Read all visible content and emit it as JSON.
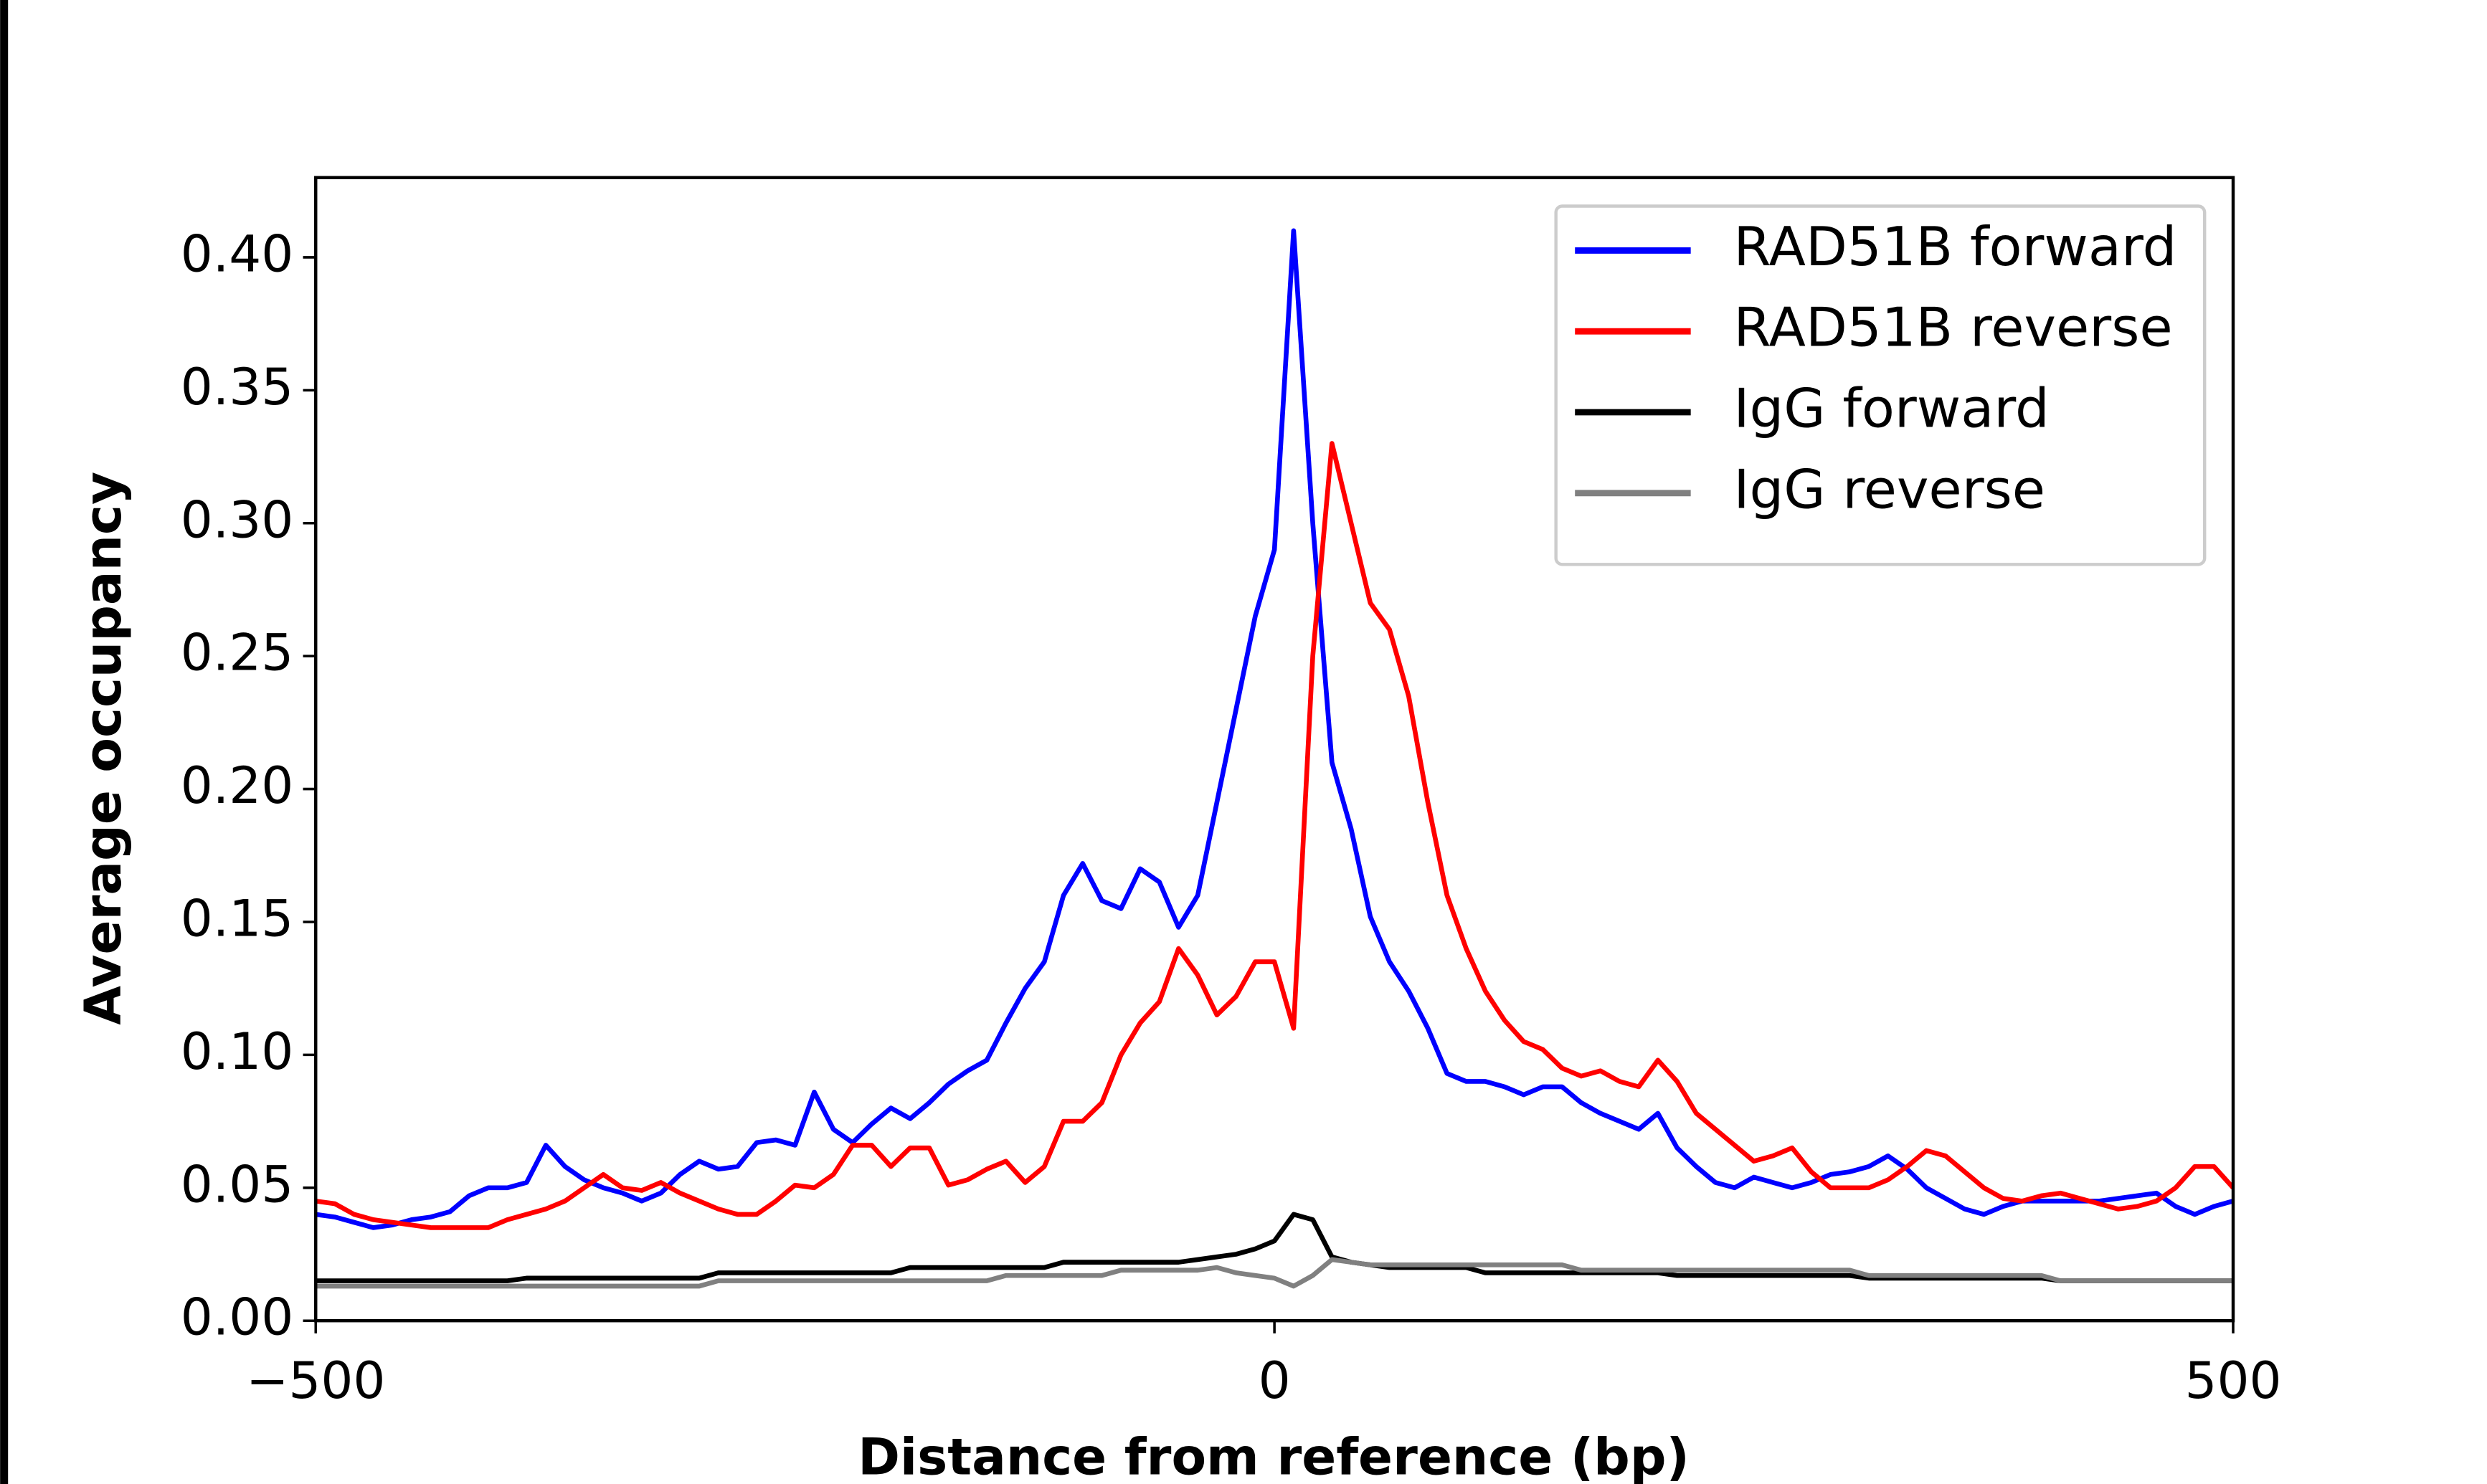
{
  "chart_data": {
    "type": "line",
    "xlabel": "Distance from reference (bp)",
    "ylabel": "Average occupancy",
    "x": [
      -500,
      -490,
      -480,
      -470,
      -460,
      -450,
      -440,
      -430,
      -420,
      -410,
      -400,
      -390,
      -380,
      -370,
      -360,
      -350,
      -340,
      -330,
      -320,
      -310,
      -300,
      -290,
      -280,
      -270,
      -260,
      -250,
      -240,
      -230,
      -220,
      -210,
      -200,
      -190,
      -180,
      -170,
      -160,
      -150,
      -140,
      -130,
      -120,
      -110,
      -100,
      -90,
      -80,
      -70,
      -60,
      -50,
      -40,
      -30,
      -20,
      -10,
      0,
      10,
      20,
      30,
      40,
      50,
      60,
      70,
      80,
      90,
      100,
      110,
      120,
      130,
      140,
      150,
      160,
      170,
      180,
      190,
      200,
      210,
      220,
      230,
      240,
      250,
      260,
      270,
      280,
      290,
      300,
      310,
      320,
      330,
      340,
      350,
      360,
      370,
      380,
      390,
      400,
      410,
      420,
      430,
      440,
      450,
      460,
      470,
      480,
      490,
      500
    ],
    "series": [
      {
        "name": "RAD51B forward",
        "color": "#0000ff",
        "values": [
          0.04,
          0.039,
          0.037,
          0.035,
          0.036,
          0.038,
          0.039,
          0.041,
          0.047,
          0.05,
          0.05,
          0.052,
          0.066,
          0.058,
          0.053,
          0.05,
          0.048,
          0.045,
          0.048,
          0.055,
          0.06,
          0.057,
          0.058,
          0.067,
          0.068,
          0.066,
          0.086,
          0.072,
          0.067,
          0.074,
          0.08,
          0.076,
          0.082,
          0.089,
          0.094,
          0.098,
          0.112,
          0.125,
          0.135,
          0.16,
          0.172,
          0.158,
          0.155,
          0.17,
          0.165,
          0.148,
          0.16,
          0.195,
          0.23,
          0.265,
          0.29,
          0.41,
          0.3,
          0.21,
          0.185,
          0.152,
          0.135,
          0.124,
          0.11,
          0.093,
          0.09,
          0.09,
          0.088,
          0.085,
          0.088,
          0.088,
          0.082,
          0.078,
          0.075,
          0.072,
          0.078,
          0.065,
          0.058,
          0.052,
          0.05,
          0.054,
          0.052,
          0.05,
          0.052,
          0.055,
          0.056,
          0.058,
          0.062,
          0.057,
          0.05,
          0.046,
          0.042,
          0.04,
          0.043,
          0.045,
          0.045,
          0.045,
          0.045,
          0.045,
          0.046,
          0.047,
          0.048,
          0.043,
          0.04,
          0.043,
          0.045
        ]
      },
      {
        "name": "RAD51B reverse",
        "color": "#ff0000",
        "values": [
          0.045,
          0.044,
          0.04,
          0.038,
          0.037,
          0.036,
          0.035,
          0.035,
          0.035,
          0.035,
          0.038,
          0.04,
          0.042,
          0.045,
          0.05,
          0.055,
          0.05,
          0.049,
          0.052,
          0.048,
          0.045,
          0.042,
          0.04,
          0.04,
          0.045,
          0.051,
          0.05,
          0.055,
          0.066,
          0.066,
          0.058,
          0.065,
          0.065,
          0.051,
          0.053,
          0.057,
          0.06,
          0.052,
          0.058,
          0.075,
          0.075,
          0.082,
          0.1,
          0.112,
          0.12,
          0.14,
          0.13,
          0.115,
          0.122,
          0.135,
          0.135,
          0.11,
          0.25,
          0.33,
          0.3,
          0.27,
          0.26,
          0.235,
          0.195,
          0.16,
          0.14,
          0.124,
          0.113,
          0.105,
          0.102,
          0.095,
          0.092,
          0.094,
          0.09,
          0.088,
          0.098,
          0.09,
          0.078,
          0.072,
          0.066,
          0.06,
          0.062,
          0.065,
          0.056,
          0.05,
          0.05,
          0.05,
          0.053,
          0.058,
          0.064,
          0.062,
          0.056,
          0.05,
          0.046,
          0.045,
          0.047,
          0.048,
          0.046,
          0.044,
          0.042,
          0.043,
          0.045,
          0.05,
          0.058,
          0.058,
          0.05
        ]
      },
      {
        "name": "IgG forward",
        "color": "#000000",
        "values": [
          0.015,
          0.015,
          0.015,
          0.015,
          0.015,
          0.015,
          0.015,
          0.015,
          0.015,
          0.015,
          0.015,
          0.016,
          0.016,
          0.016,
          0.016,
          0.016,
          0.016,
          0.016,
          0.016,
          0.016,
          0.016,
          0.018,
          0.018,
          0.018,
          0.018,
          0.018,
          0.018,
          0.018,
          0.018,
          0.018,
          0.018,
          0.02,
          0.02,
          0.02,
          0.02,
          0.02,
          0.02,
          0.02,
          0.02,
          0.022,
          0.022,
          0.022,
          0.022,
          0.022,
          0.022,
          0.022,
          0.023,
          0.024,
          0.025,
          0.027,
          0.03,
          0.04,
          0.038,
          0.024,
          0.022,
          0.021,
          0.02,
          0.02,
          0.02,
          0.02,
          0.02,
          0.018,
          0.018,
          0.018,
          0.018,
          0.018,
          0.018,
          0.018,
          0.018,
          0.018,
          0.018,
          0.017,
          0.017,
          0.017,
          0.017,
          0.017,
          0.017,
          0.017,
          0.017,
          0.017,
          0.017,
          0.016,
          0.016,
          0.016,
          0.016,
          0.016,
          0.016,
          0.016,
          0.016,
          0.016,
          0.016,
          0.015,
          0.015,
          0.015,
          0.015,
          0.015,
          0.015,
          0.015,
          0.015,
          0.015,
          0.015
        ]
      },
      {
        "name": "IgG reverse",
        "color": "#808080",
        "values": [
          0.013,
          0.013,
          0.013,
          0.013,
          0.013,
          0.013,
          0.013,
          0.013,
          0.013,
          0.013,
          0.013,
          0.013,
          0.013,
          0.013,
          0.013,
          0.013,
          0.013,
          0.013,
          0.013,
          0.013,
          0.013,
          0.015,
          0.015,
          0.015,
          0.015,
          0.015,
          0.015,
          0.015,
          0.015,
          0.015,
          0.015,
          0.015,
          0.015,
          0.015,
          0.015,
          0.015,
          0.017,
          0.017,
          0.017,
          0.017,
          0.017,
          0.017,
          0.019,
          0.019,
          0.019,
          0.019,
          0.019,
          0.02,
          0.018,
          0.017,
          0.016,
          0.013,
          0.017,
          0.023,
          0.022,
          0.021,
          0.021,
          0.021,
          0.021,
          0.021,
          0.021,
          0.021,
          0.021,
          0.021,
          0.021,
          0.021,
          0.019,
          0.019,
          0.019,
          0.019,
          0.019,
          0.019,
          0.019,
          0.019,
          0.019,
          0.019,
          0.019,
          0.019,
          0.019,
          0.019,
          0.019,
          0.017,
          0.017,
          0.017,
          0.017,
          0.017,
          0.017,
          0.017,
          0.017,
          0.017,
          0.017,
          0.015,
          0.015,
          0.015,
          0.015,
          0.015,
          0.015,
          0.015,
          0.015,
          0.015,
          0.015
        ]
      }
    ],
    "xlim": [
      -500,
      500
    ],
    "xticks": [
      {
        "value": -500,
        "label": "−500"
      },
      0,
      500
    ],
    "ylim": [
      0,
      0.43
    ],
    "yticks": [
      {
        "value": 0,
        "label": "0.00"
      },
      0.05,
      {
        "value": 0.1,
        "label": "0.10"
      },
      0.15,
      {
        "value": 0.2,
        "label": "0.20"
      },
      0.25,
      {
        "value": 0.3,
        "label": "0.30"
      },
      0.35,
      {
        "value": 0.4,
        "label": "0.40"
      }
    ],
    "grid": false,
    "legend": "upper right"
  }
}
